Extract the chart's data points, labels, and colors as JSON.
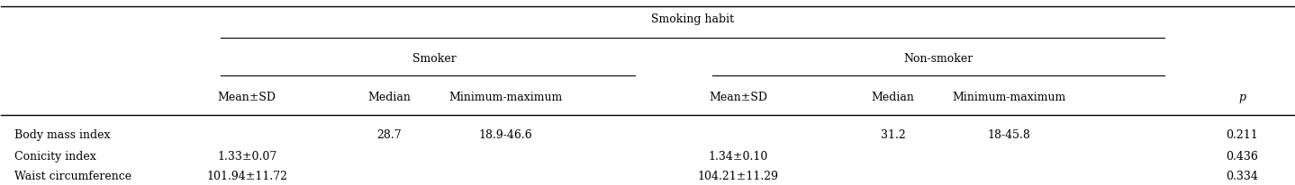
{
  "title": "Smoking habit",
  "group1_label": "Smoker",
  "group2_label": "Non-smoker",
  "col_headers": [
    "Mean±SD",
    "Median",
    "Minimum-maximum",
    "Mean±SD",
    "Median",
    "Minimum-maximum",
    "p"
  ],
  "rows": [
    {
      "label": "Body mass index",
      "smoker_mean_sd": "",
      "smoker_median": "28.7",
      "smoker_minmax": "18.9-46.6",
      "nonsmoker_mean_sd": "",
      "nonsmoker_median": "31.2",
      "nonsmoker_minmax": "18-45.8",
      "p": "0.211"
    },
    {
      "label": "Conicity index",
      "smoker_mean_sd": "1.33±0.07",
      "smoker_median": "",
      "smoker_minmax": "",
      "nonsmoker_mean_sd": "1.34±0.10",
      "nonsmoker_median": "",
      "nonsmoker_minmax": "",
      "p": "0.436"
    },
    {
      "label": "Waist circumference",
      "smoker_mean_sd": "101.94±11.72",
      "smoker_median": "",
      "smoker_minmax": "",
      "nonsmoker_mean_sd": "104.21±11.29",
      "nonsmoker_median": "",
      "nonsmoker_minmax": "",
      "p": "0.334"
    }
  ],
  "background_color": "#ffffff",
  "text_color": "#000000",
  "font_size": 9,
  "header_font_size": 9
}
